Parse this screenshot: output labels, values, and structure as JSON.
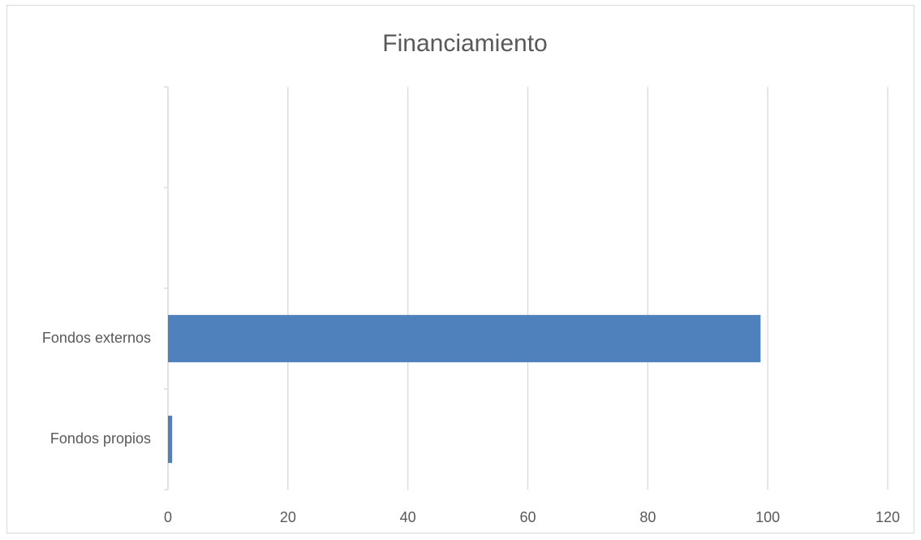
{
  "chart_data": {
    "type": "barh",
    "title": "Financiamiento",
    "categories": [
      "Fondos propios",
      "Fondos externos",
      null,
      null
    ],
    "values": [
      0.7,
      98.8,
      null,
      null
    ],
    "color": "#4f81bd",
    "xlim": [
      0,
      120
    ],
    "xticks": [
      0,
      20,
      40,
      60,
      80,
      100,
      120
    ],
    "grid": true
  }
}
